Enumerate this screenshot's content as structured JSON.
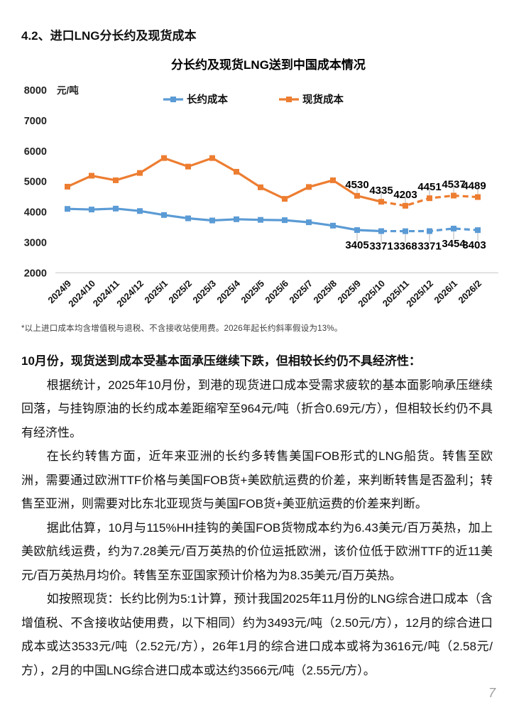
{
  "page": {
    "section_heading": "4.2、进口LNG分长约及现货成本",
    "footnote": "*以上进口成本均含增值税与退税、不含接收站使用费。2026年起长约斜率假设为13%。",
    "body": {
      "lead": "10月份，现货送到成本受基本面承压继续下跌，但相较长约仍不具经济性：",
      "paragraphs": [
        "根据统计，2025年10月份，到港的现货进口成本受需求疲软的基本面影响承压继续回落，与挂钩原油的长约成本差距缩窄至964元/吨（折合0.69元/方），但相较长约仍不具有经济性。",
        "在长约转售方面，近年来亚洲的长约多转售美国FOB形式的LNG船货。转售至欧洲，需要通过欧洲TTF价格与美国FOB货+美欧航运费的价差，来判断转售是否盈利；转售至亚洲，则需要对比东北亚现货与美国FOB货+美亚航运费的价差来判断。",
        "据此估算，10月与115%HH挂钩的美国FOB货物成本约为6.43美元/百万英热，加上美欧航线运费，约为7.28美元/百万英热的价位运抵欧洲，该价位低于欧洲TTF的近11美元/百万英热月均价。转售至东亚国家预计价格为为8.35美元/百万英热。",
        "如按照现货：长约比例为5:1计算，预计我国2025年11月份的LNG综合进口成本（含增值税、不含接收站使用费，以下相同）约为3493元/吨（2.50元/方），12月的综合进口成本或达3533元/吨（2.52元/方），26年1月的综合进口成本或将为3616元/吨（2.58元/方），2月的中国LNG综合进口成本或达约3566元/吨（2.55元/方）。"
      ]
    },
    "page_number": "7"
  },
  "chart_data": {
    "type": "line",
    "title": "分长约及现货LNG送到中国成本情况",
    "unit_label": "元/吨",
    "categories": [
      "2024/9",
      "2024/10",
      "2024/11",
      "2024/12",
      "2025/1",
      "2025/2",
      "2025/3",
      "2025/4",
      "2025/5",
      "2025/6",
      "2025/7",
      "2025/8",
      "2025/9",
      "2025/10",
      "2025/11",
      "2025/12",
      "2026/1",
      "2026/2"
    ],
    "series": [
      {
        "key": "long-term-contract-cost",
        "name": "长约成本",
        "color": "#5B9BD5",
        "values": [
          4100,
          4080,
          4110,
          4030,
          3900,
          3790,
          3720,
          3760,
          3740,
          3730,
          3660,
          3550,
          3405,
          3371,
          3368,
          3371,
          3454,
          3403
        ],
        "label_position": "below"
      },
      {
        "key": "spot-cost",
        "name": "现货成本",
        "color": "#ED7D31",
        "values": [
          4830,
          5190,
          5040,
          5280,
          5770,
          5490,
          5770,
          5320,
          4810,
          4430,
          4820,
          5040,
          4530,
          4335,
          4203,
          4451,
          4537,
          4489
        ],
        "label_position": "above"
      }
    ],
    "labeled_from_index": 12,
    "dashed_from_index": 13,
    "ylim": [
      2000,
      8000
    ],
    "ytick_step": 1000,
    "xlabel": "",
    "ylabel": "元/吨",
    "grid": false,
    "legend_position": "top"
  }
}
